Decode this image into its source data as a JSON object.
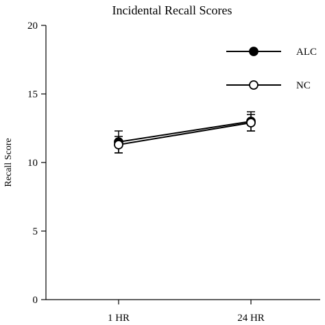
{
  "chart_data": {
    "type": "line",
    "title": "Incidental Recall Scores",
    "xlabel": "",
    "ylabel": "Recall Score",
    "categories": [
      "1 HR",
      "24 HR"
    ],
    "ylim": [
      0,
      20
    ],
    "yticks": [
      0,
      5,
      10,
      15,
      20
    ],
    "grid": false,
    "legend_position": "top-right",
    "series": [
      {
        "name": "ALC",
        "marker": "filled-circle",
        "values": [
          11.5,
          13.0
        ],
        "error": [
          0.8,
          0.7
        ]
      },
      {
        "name": "NC",
        "marker": "open-circle",
        "values": [
          11.3,
          12.9
        ],
        "error": [
          0.6,
          0.6
        ]
      }
    ],
    "colors": {
      "ink": "#000000",
      "background": "#ffffff"
    }
  }
}
